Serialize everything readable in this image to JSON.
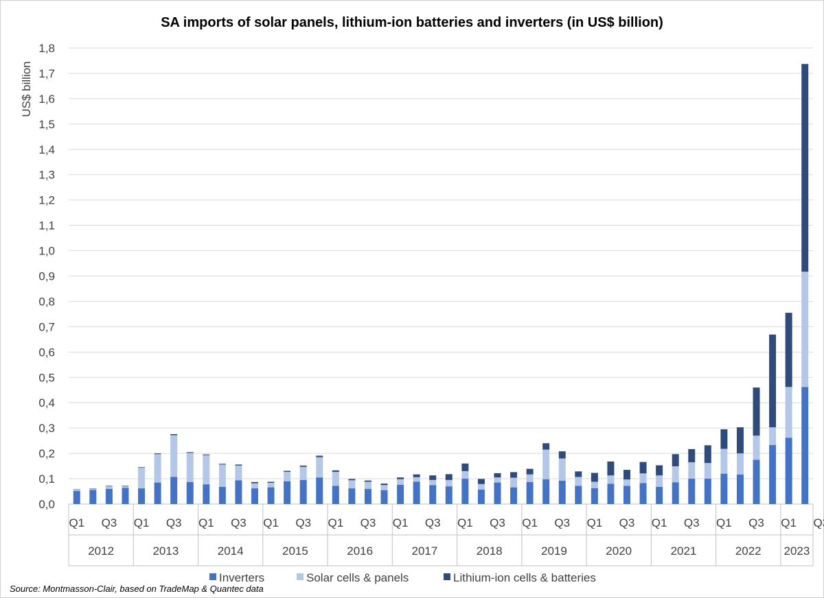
{
  "chart_data": {
    "type": "bar",
    "stacked": true,
    "title": "SA imports of solar panels, lithium-ion batteries and inverters (in US$ billion)",
    "ylabel": "US$ billion",
    "ylim": [
      0,
      1.8
    ],
    "y_ticks": [
      "0,0",
      "0,1",
      "0,2",
      "0,3",
      "0,4",
      "0,5",
      "0,6",
      "0,7",
      "0,8",
      "0,9",
      "1,0",
      "1,1",
      "1,2",
      "1,3",
      "1,4",
      "1,5",
      "1,6",
      "1,7",
      "1,8"
    ],
    "grid": true,
    "legend_position": "bottom",
    "quarter_labels": [
      "Q1",
      "",
      "Q3",
      "",
      "Q1",
      "",
      "Q3",
      "",
      "Q1",
      "",
      "Q3",
      "",
      "Q1",
      "",
      "Q3",
      "",
      "Q1",
      "",
      "Q3",
      "",
      "Q1",
      "",
      "Q3",
      "",
      "Q1",
      "",
      "Q3",
      "",
      "Q1",
      "",
      "Q3",
      "",
      "Q1",
      "",
      "Q3",
      "",
      "Q1",
      "",
      "Q3",
      "",
      "Q1",
      "",
      "Q3",
      "",
      "Q1",
      "",
      "Q3",
      "",
      "Q1",
      ""
    ],
    "years": [
      {
        "label": "2012",
        "quarters": 4
      },
      {
        "label": "2013",
        "quarters": 4
      },
      {
        "label": "2014",
        "quarters": 4
      },
      {
        "label": "2015",
        "quarters": 4
      },
      {
        "label": "2016",
        "quarters": 4
      },
      {
        "label": "2017",
        "quarters": 4
      },
      {
        "label": "2018",
        "quarters": 4
      },
      {
        "label": "2019",
        "quarters": 4
      },
      {
        "label": "2020",
        "quarters": 4
      },
      {
        "label": "2021",
        "quarters": 4
      },
      {
        "label": "2022",
        "quarters": 4
      },
      {
        "label": "2023",
        "quarters": 2
      }
    ],
    "series": [
      {
        "name": "Inverters",
        "color": "#4472C4",
        "values": [
          0.052,
          0.056,
          0.06,
          0.064,
          0.062,
          0.085,
          0.107,
          0.087,
          0.078,
          0.068,
          0.094,
          0.062,
          0.066,
          0.09,
          0.095,
          0.105,
          0.072,
          0.062,
          0.06,
          0.055,
          0.076,
          0.088,
          0.075,
          0.07,
          0.1,
          0.057,
          0.085,
          0.066,
          0.087,
          0.098,
          0.092,
          0.072,
          0.063,
          0.08,
          0.072,
          0.083,
          0.068,
          0.086,
          0.1,
          0.1,
          0.12,
          0.117,
          0.175,
          0.233,
          0.262,
          0.462
        ]
      },
      {
        "name": "Solar cells & panels",
        "color": "#B4C7E7",
        "values": [
          0.006,
          0.005,
          0.01,
          0.006,
          0.082,
          0.112,
          0.165,
          0.115,
          0.115,
          0.088,
          0.058,
          0.02,
          0.018,
          0.037,
          0.052,
          0.08,
          0.055,
          0.032,
          0.028,
          0.02,
          0.022,
          0.018,
          0.02,
          0.025,
          0.03,
          0.022,
          0.02,
          0.038,
          0.03,
          0.117,
          0.088,
          0.035,
          0.025,
          0.033,
          0.025,
          0.038,
          0.045,
          0.063,
          0.065,
          0.062,
          0.098,
          0.083,
          0.095,
          0.07,
          0.2,
          0.455
        ]
      },
      {
        "name": "Lithium-ion cells & batteries",
        "color": "#2F4B7C",
        "values": [
          0.001,
          0.001,
          0.002,
          0.002,
          0.002,
          0.003,
          0.004,
          0.003,
          0.003,
          0.003,
          0.004,
          0.005,
          0.004,
          0.004,
          0.005,
          0.006,
          0.006,
          0.005,
          0.005,
          0.006,
          0.007,
          0.011,
          0.018,
          0.023,
          0.03,
          0.02,
          0.017,
          0.022,
          0.022,
          0.025,
          0.028,
          0.022,
          0.035,
          0.055,
          0.038,
          0.045,
          0.04,
          0.048,
          0.052,
          0.07,
          0.077,
          0.103,
          0.19,
          0.366,
          0.293,
          0.82
        ]
      }
    ],
    "source": "Source: Montmasson-Clair, based on TradeMap & Quantec data"
  }
}
